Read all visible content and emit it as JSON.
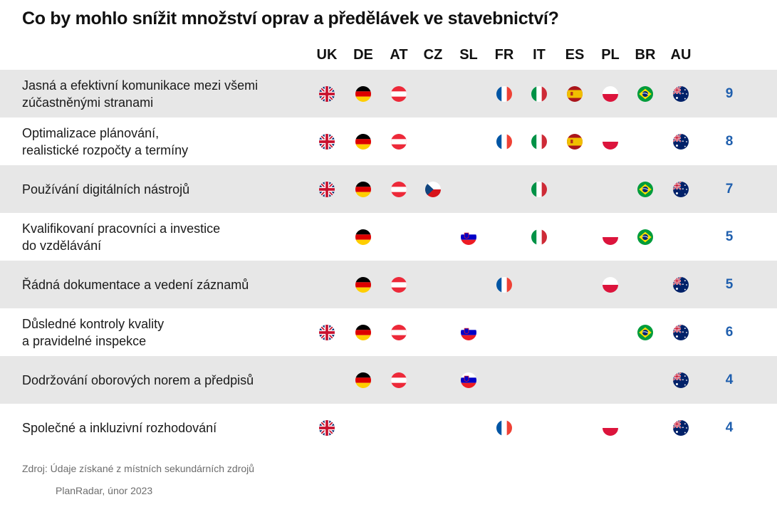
{
  "title": "Co by mohlo snížit množství oprav a předělávek ve stavebnictví?",
  "source": "Zdroj: Údaje získané z místních sekundárních zdrojů",
  "credit": "PlanRadar, únor 2023",
  "colors": {
    "count": "#1f5fae",
    "shade": "#e7e7e7"
  },
  "chart_data": {
    "type": "table",
    "columns": [
      "UK",
      "DE",
      "AT",
      "CZ",
      "SL",
      "FR",
      "IT",
      "ES",
      "PL",
      "BR",
      "AU"
    ],
    "rows": [
      {
        "label": "Jasná a efektivní komunikace mezi všemi\nzúčastněnými stranami",
        "countries": [
          "UK",
          "DE",
          "AT",
          "FR",
          "IT",
          "ES",
          "PL",
          "BR",
          "AU"
        ],
        "count": 9
      },
      {
        "label": "Optimalizace plánování,\nrealistické rozpočty a termíny",
        "countries": [
          "UK",
          "DE",
          "AT",
          "FR",
          "IT",
          "ES",
          "PL",
          "AU"
        ],
        "count": 8
      },
      {
        "label": "Používání digitálních nástrojů",
        "countries": [
          "UK",
          "DE",
          "AT",
          "CZ",
          "IT",
          "BR",
          "AU"
        ],
        "count": 7
      },
      {
        "label": "Kvalifikovaní pracovníci a investice\ndo vzdělávání",
        "countries": [
          "DE",
          "SL",
          "IT",
          "PL",
          "BR"
        ],
        "count": 5
      },
      {
        "label": "Řádná dokumentace a vedení záznamů",
        "countries": [
          "DE",
          "AT",
          "FR",
          "PL",
          "AU"
        ],
        "count": 5
      },
      {
        "label": "Důsledné kontroly kvality\na pravidelné inspekce",
        "countries": [
          "UK",
          "DE",
          "AT",
          "SL",
          "BR",
          "AU"
        ],
        "count": 6
      },
      {
        "label": "Dodržování oborových norem a předpisů",
        "countries": [
          "DE",
          "AT",
          "SL",
          "AU"
        ],
        "count": 4
      },
      {
        "label": "Společné a inkluzivní rozhodování",
        "countries": [
          "UK",
          "FR",
          "PL",
          "AU"
        ],
        "count": 4
      }
    ]
  }
}
